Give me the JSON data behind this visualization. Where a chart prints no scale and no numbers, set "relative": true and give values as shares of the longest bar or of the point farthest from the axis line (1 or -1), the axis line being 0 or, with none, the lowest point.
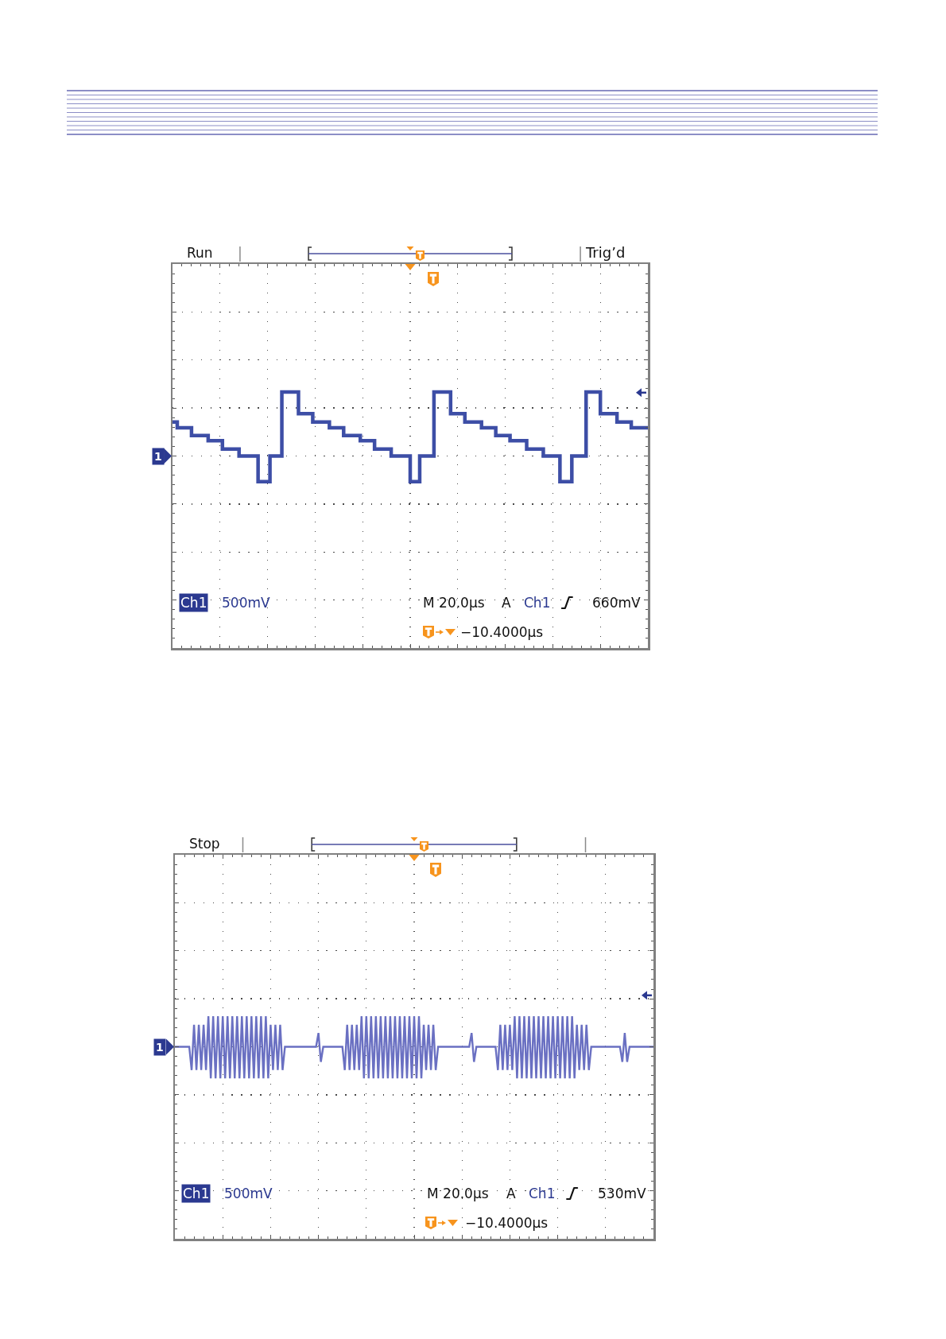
{
  "chart_data": [
    {
      "type": "step",
      "relative": true,
      "grid": true,
      "annotations": [
        "Run",
        "Ch1",
        "500mV",
        "M 20.0µs",
        "A",
        "Ch1",
        "660mV",
        "−10.4000µs",
        "1",
        "Trig’d"
      ],
      "categories": [
        null,
        null,
        null,
        null,
        null,
        null,
        null,
        null,
        null,
        null,
        null,
        null,
        null,
        null,
        null,
        null,
        null,
        null,
        null,
        null,
        null,
        null,
        null,
        null,
        null,
        null,
        null,
        null,
        null,
        null,
        null,
        null,
        null,
        null,
        null,
        null,
        null,
        null,
        null,
        null,
        null,
        null,
        null,
        null,
        null,
        null,
        null,
        null,
        null,
        null,
        null,
        null,
        null,
        null,
        null,
        null,
        null,
        null,
        null,
        null,
        null,
        null,
        null,
        null,
        null,
        null,
        null,
        null,
        null,
        null,
        null,
        null,
        null,
        null,
        null,
        null,
        null,
        null,
        null,
        null,
        null,
        null,
        null,
        null,
        null,
        null,
        null,
        null,
        null,
        null,
        null,
        null,
        null,
        null,
        null,
        null,
        null,
        null,
        null,
        null,
        null,
        null,
        null,
        null,
        null,
        null,
        null,
        null,
        null,
        null,
        null,
        null,
        null,
        null,
        null,
        null,
        null,
        null,
        null,
        null,
        null,
        null,
        null,
        null,
        null,
        null,
        null,
        null,
        null,
        null,
        null,
        null,
        null,
        null,
        null,
        null,
        null,
        null,
        null,
        null,
        null,
        null,
        null,
        null,
        null,
        null,
        null,
        null,
        null,
        null,
        null,
        null,
        null,
        null,
        null,
        null,
        null,
        null,
        null,
        null,
        null,
        null,
        null,
        null,
        null,
        null,
        null,
        null,
        null,
        null,
        null,
        null,
        null,
        null,
        null,
        null,
        null,
        null,
        null,
        null,
        null,
        null,
        null,
        null,
        null,
        null,
        null,
        null,
        null,
        null,
        null,
        null,
        null,
        null,
        null,
        null,
        null,
        null,
        null,
        null,
        null
      ],
      "series": [
        {
          "color": "#3d4ea6",
          "values": [
            0.53,
            0.53,
            0.44,
            0.44,
            0.44,
            0.44,
            0.44,
            0.44,
            0.32,
            0.32,
            0.32,
            0.32,
            0.32,
            0.32,
            0.32,
            0.24,
            0.24,
            0.24,
            0.24,
            0.24,
            0.24,
            0.11,
            0.11,
            0.11,
            0.11,
            0.11,
            0.11,
            0.11,
            0,
            0,
            0,
            0,
            0,
            0,
            0,
            0,
            -0.4,
            -0.4,
            -0.4,
            -0.4,
            -0.4,
            0,
            0,
            0,
            0,
            0,
            1,
            1,
            1,
            1,
            1,
            1,
            1,
            0.66,
            0.66,
            0.66,
            0.66,
            0.66,
            0.66,
            0.53,
            0.53,
            0.53,
            0.53,
            0.53,
            0.53,
            0.53,
            0.44,
            0.44,
            0.44,
            0.44,
            0.44,
            0.44,
            0.32,
            0.32,
            0.32,
            0.32,
            0.32,
            0.32,
            0.32,
            0.24,
            0.24,
            0.24,
            0.24,
            0.24,
            0.24,
            0.11,
            0.11,
            0.11,
            0.11,
            0.11,
            0.11,
            0.11,
            0,
            0,
            0,
            0,
            0,
            0,
            0,
            0,
            -0.4,
            -0.4,
            -0.4,
            -0.4,
            0,
            0,
            0,
            0,
            0,
            0,
            1,
            1,
            1,
            1,
            1,
            1,
            1,
            0.66,
            0.66,
            0.66,
            0.66,
            0.66,
            0.66,
            0.53,
            0.53,
            0.53,
            0.53,
            0.53,
            0.53,
            0.53,
            0.44,
            0.44,
            0.44,
            0.44,
            0.44,
            0.44,
            0.32,
            0.32,
            0.32,
            0.32,
            0.32,
            0.32,
            0.24,
            0.24,
            0.24,
            0.24,
            0.24,
            0.24,
            0.24,
            0.11,
            0.11,
            0.11,
            0.11,
            0.11,
            0.11,
            0.11,
            0,
            0,
            0,
            0,
            0,
            0,
            0,
            -0.4,
            -0.4,
            -0.4,
            -0.4,
            -0.4,
            0,
            0,
            0,
            0,
            0,
            0,
            1,
            1,
            1,
            1,
            1,
            1,
            0.66,
            0.66,
            0.66,
            0.66,
            0.66,
            0.66,
            0.66,
            0.53,
            0.53,
            0.53,
            0.53,
            0.53,
            0.53,
            0.44,
            0.44,
            0.44,
            0.44,
            0.44,
            0.44,
            0.44,
            0.44
          ]
        }
      ]
    },
    {
      "type": "line",
      "relative": true,
      "grid": true,
      "annotations": [
        "Stop",
        "Ch1",
        "500mV",
        "M 20.0µs",
        "A",
        "Ch1",
        "530mV",
        "−10.4000µs",
        "1"
      ],
      "categories": [
        null,
        null,
        null,
        null,
        null,
        null,
        null,
        null,
        null,
        null,
        null,
        null,
        null,
        null,
        null,
        null,
        null,
        null,
        null,
        null,
        null,
        null,
        null,
        null,
        null,
        null,
        null,
        null,
        null,
        null,
        null,
        null,
        null,
        null,
        null,
        null,
        null,
        null,
        null,
        null,
        null,
        null,
        null,
        null,
        null,
        null,
        null,
        null,
        null,
        null,
        null,
        null,
        null,
        null,
        null,
        null,
        null,
        null,
        null,
        null,
        null,
        null,
        null,
        null,
        null,
        null,
        null,
        null,
        null,
        null,
        null,
        null,
        null,
        null,
        null,
        null,
        null,
        null,
        null,
        null,
        null,
        null,
        null,
        null,
        null,
        null,
        null,
        null,
        null,
        null,
        null,
        null,
        null,
        null,
        null,
        null,
        null,
        null,
        null,
        null,
        null,
        null,
        null,
        null,
        null,
        null,
        null,
        null,
        null,
        null,
        null,
        null,
        null,
        null,
        null,
        null,
        null,
        null,
        null,
        null,
        null,
        null,
        null,
        null,
        null,
        null,
        null,
        null,
        null,
        null,
        null,
        null,
        null,
        null,
        null,
        null,
        null,
        null,
        null,
        null,
        null,
        null,
        null,
        null,
        null,
        null,
        null,
        null,
        null,
        null,
        null,
        null,
        null,
        null,
        null,
        null,
        null,
        null,
        null,
        null,
        null,
        null,
        null,
        null,
        null,
        null,
        null,
        null,
        null,
        null,
        null,
        null,
        null,
        null,
        null,
        null,
        null,
        null,
        null,
        null,
        null,
        null,
        null,
        null,
        null,
        null,
        null,
        null,
        null,
        null,
        null,
        null,
        null,
        null,
        null,
        null,
        null,
        null,
        null,
        null,
        null
      ],
      "series": [
        {
          "color": "#6a70c2",
          "values": [
            0,
            0,
            0,
            0,
            0,
            0,
            0,
            -0.74,
            0.7,
            -0.74,
            0.7,
            -0.74,
            0.7,
            -0.74,
            0.97,
            -1,
            0.97,
            -1,
            0.97,
            -1,
            0.97,
            -1,
            0.97,
            -1,
            0.97,
            -1,
            0.97,
            -1,
            0.97,
            -1,
            0.97,
            -1,
            0.97,
            -1,
            0.97,
            -1,
            0.97,
            -1,
            0.97,
            -1,
            0.7,
            -0.74,
            0.7,
            -0.74,
            0.7,
            -0.74,
            0,
            0,
            0,
            0,
            0,
            0,
            0,
            0,
            0,
            0,
            0,
            0,
            0,
            0,
            0.44,
            -0.48,
            0,
            0,
            0,
            0,
            0,
            0,
            0,
            0,
            0,
            -0.74,
            0.7,
            -0.74,
            0.7,
            -0.74,
            0.7,
            -0.74,
            0.97,
            -1,
            0.97,
            -1,
            0.97,
            -1,
            0.97,
            -1,
            0.97,
            -1,
            0.97,
            -1,
            0.97,
            -1,
            0.97,
            -1,
            0.97,
            -1,
            0.97,
            -1,
            0.97,
            -1,
            0.97,
            -1,
            0.97,
            -1,
            0.7,
            -0.74,
            0.7,
            -0.74,
            0.7,
            -0.74,
            0,
            0,
            0,
            0,
            0,
            0,
            0,
            0,
            0,
            0,
            0,
            0,
            0,
            0,
            0.44,
            -0.48,
            0,
            0,
            0,
            0,
            0,
            0,
            0,
            0,
            0,
            -0.74,
            0.7,
            -0.74,
            0.7,
            -0.74,
            0.7,
            -0.74,
            0.97,
            -1,
            0.97,
            -1,
            0.97,
            -1,
            0.97,
            -1,
            0.97,
            -1,
            0.97,
            -1,
            0.97,
            -1,
            0.97,
            -1,
            0.97,
            -1,
            0.97,
            -1,
            0.97,
            -1,
            0.97,
            -1,
            0.97,
            -1,
            0.7,
            -0.74,
            0.7,
            -0.74,
            0.7,
            -0.74,
            0,
            0,
            0,
            0,
            0,
            0,
            0,
            0,
            0,
            0,
            0,
            0,
            0,
            -0.48,
            0.44,
            -0.48,
            0,
            0,
            0,
            0,
            0,
            0,
            0,
            0,
            0,
            0,
            0
          ]
        }
      ]
    }
  ]
}
